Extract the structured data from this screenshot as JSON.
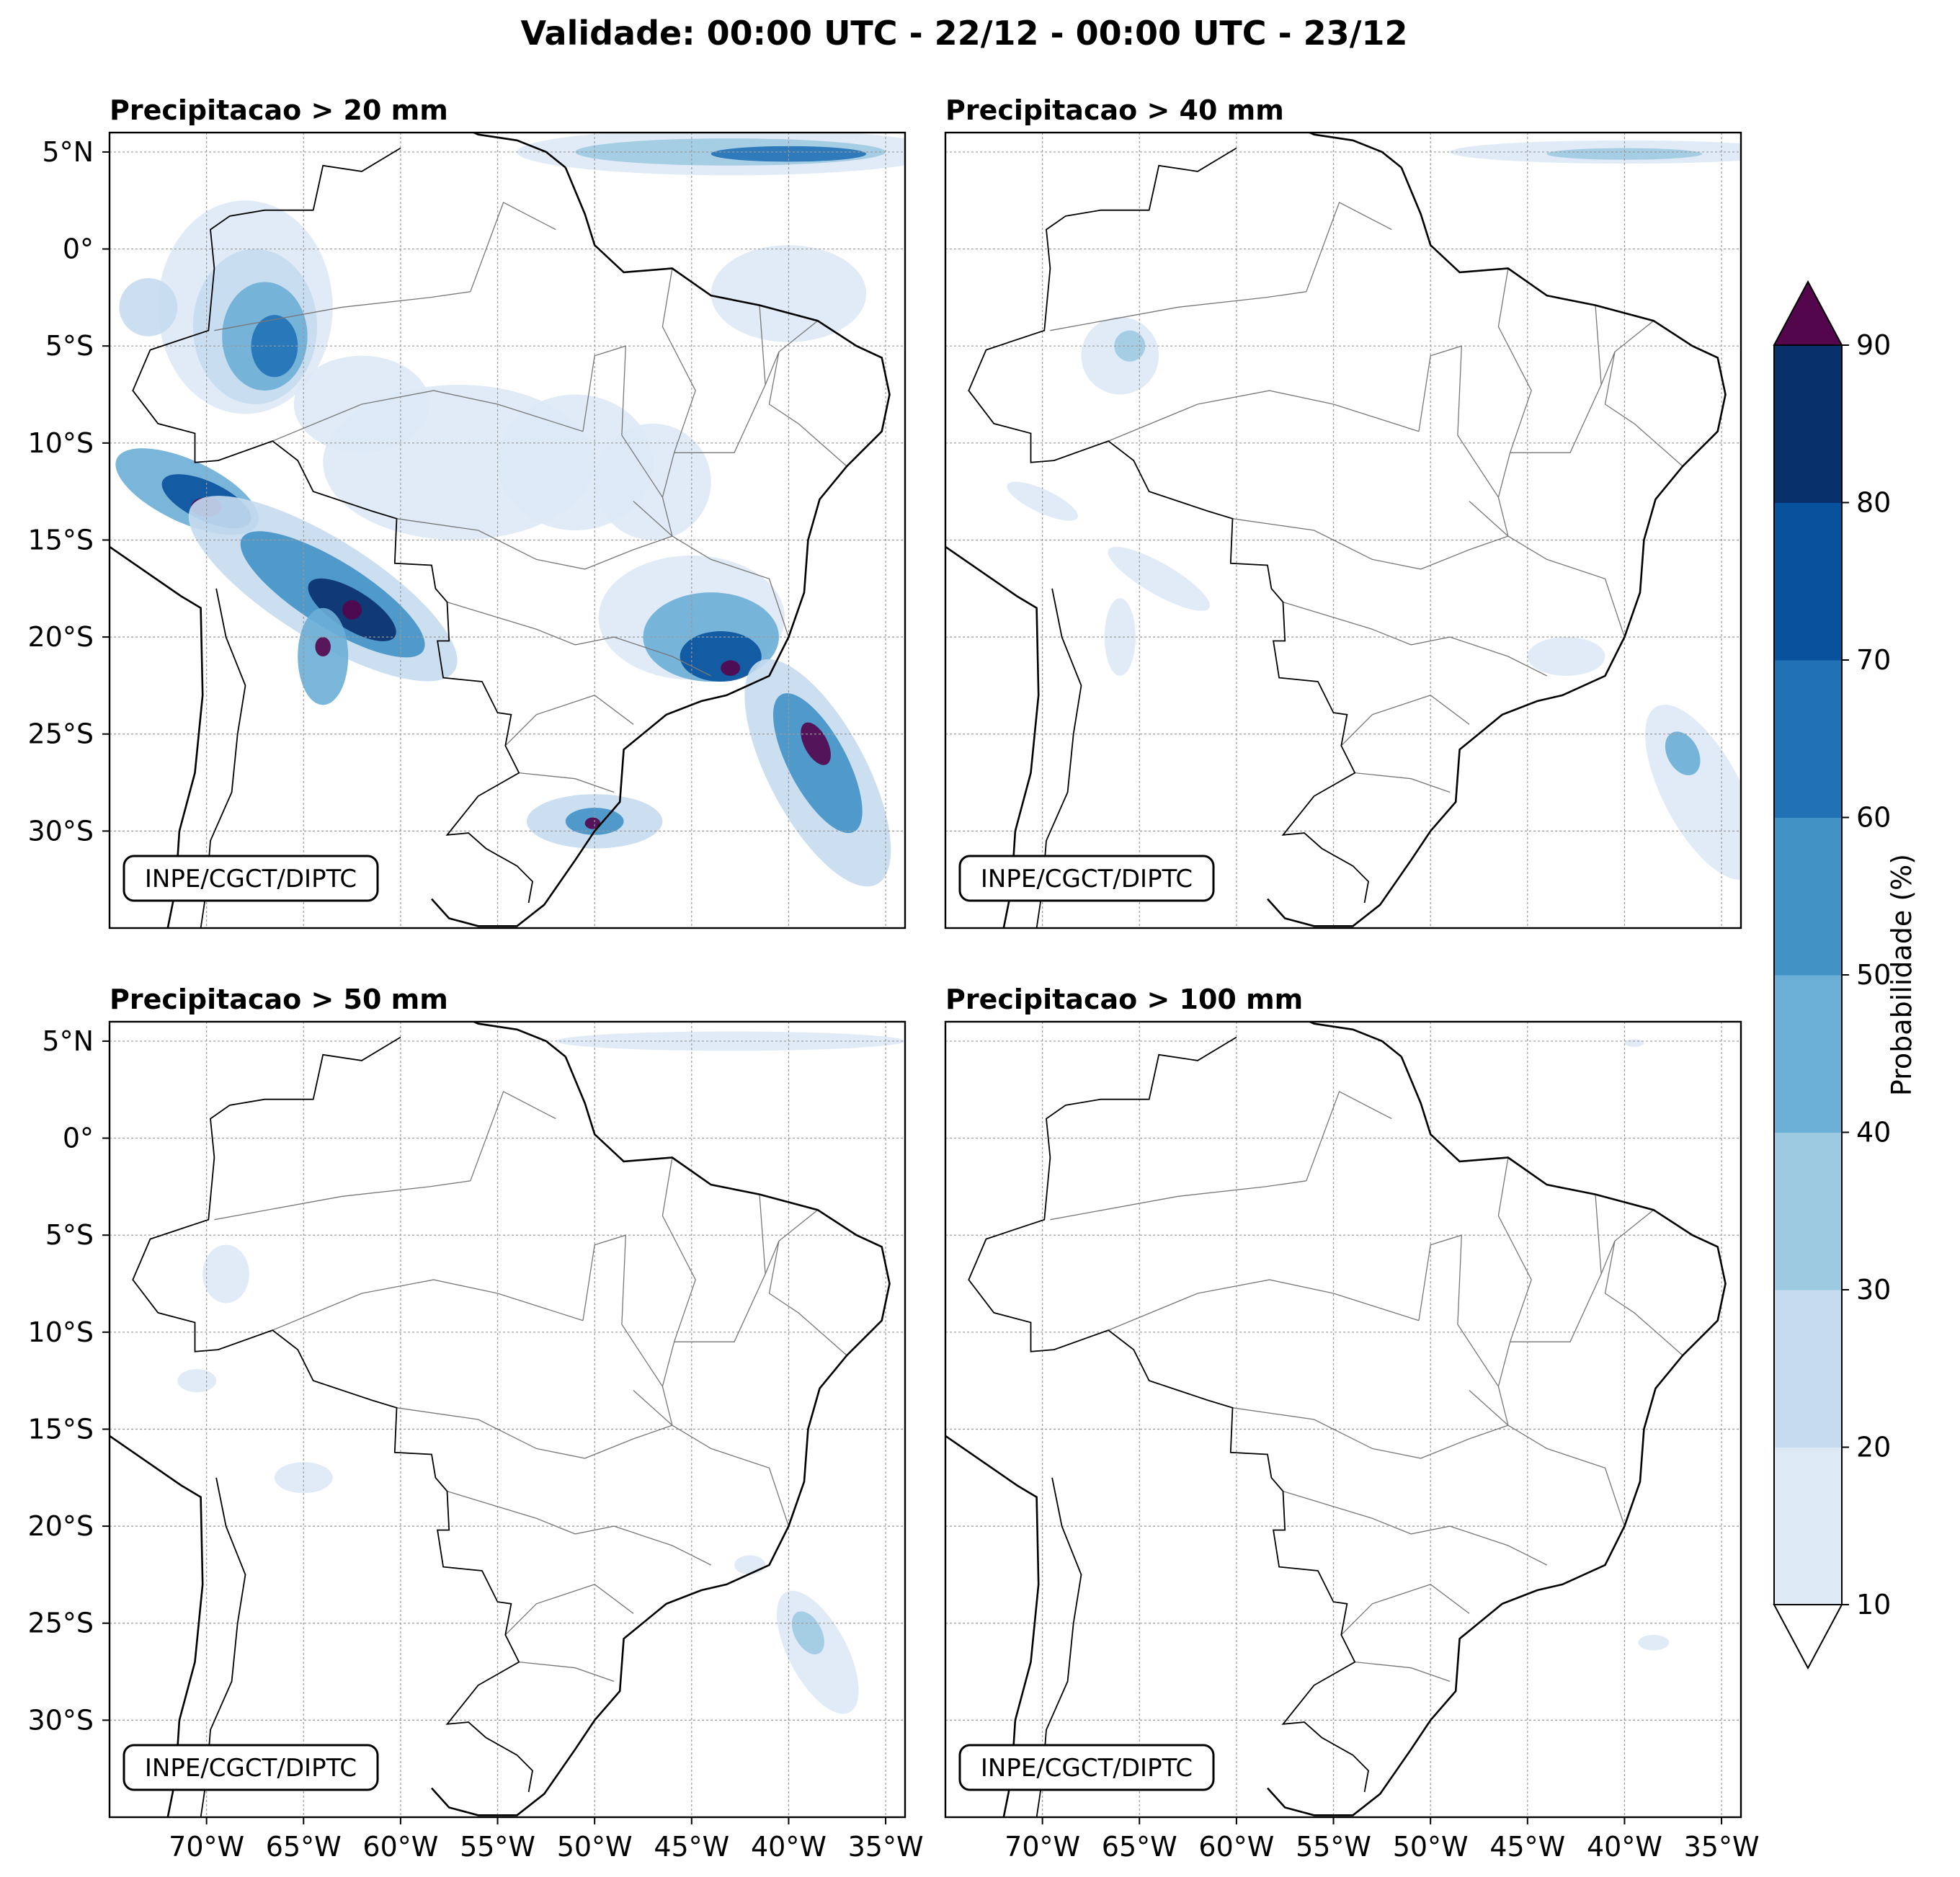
{
  "title": "Validade: 00:00 UTC - 22/12 - 00:00 UTC - 23/12",
  "watermark": "INPE/CGCT/DIPTC",
  "panels": [
    {
      "title": "Precipitacao > 20 mm"
    },
    {
      "title": "Precipitacao > 40 mm"
    },
    {
      "title": "Precipitacao > 50 mm"
    },
    {
      "title": "Precipitacao > 100 mm"
    }
  ],
  "map": {
    "lon_range": [
      -75,
      -34
    ],
    "lat_range": [
      -35,
      6
    ],
    "lon_ticks": [
      -70,
      -65,
      -60,
      -55,
      -50,
      -45,
      -40,
      -35
    ],
    "lat_ticks": [
      5,
      0,
      -5,
      -10,
      -15,
      -20,
      -25,
      -30
    ],
    "lon_tick_labels": [
      "70°W",
      "65°W",
      "60°W",
      "55°W",
      "50°W",
      "45°W",
      "40°W",
      "35°W"
    ],
    "lat_tick_labels": [
      "5°N",
      "0°",
      "5°S",
      "10°S",
      "15°S",
      "20°S",
      "25°S",
      "30°S"
    ],
    "gridlines": true
  },
  "colorbar": {
    "label": "Probabilidade (%)",
    "ticks": [
      "10",
      "20",
      "30",
      "40",
      "50",
      "60",
      "70",
      "80",
      "90"
    ],
    "levels": [
      10,
      20,
      30,
      40,
      50,
      60,
      70,
      80,
      90
    ],
    "colors": [
      "#dee9f6",
      "#c6dbef",
      "#9ecae1",
      "#6baed6",
      "#4292c6",
      "#2171b5",
      "#08519c",
      "#08306b"
    ],
    "over_color": "#54064d",
    "under_color": "#ffffff"
  }
}
